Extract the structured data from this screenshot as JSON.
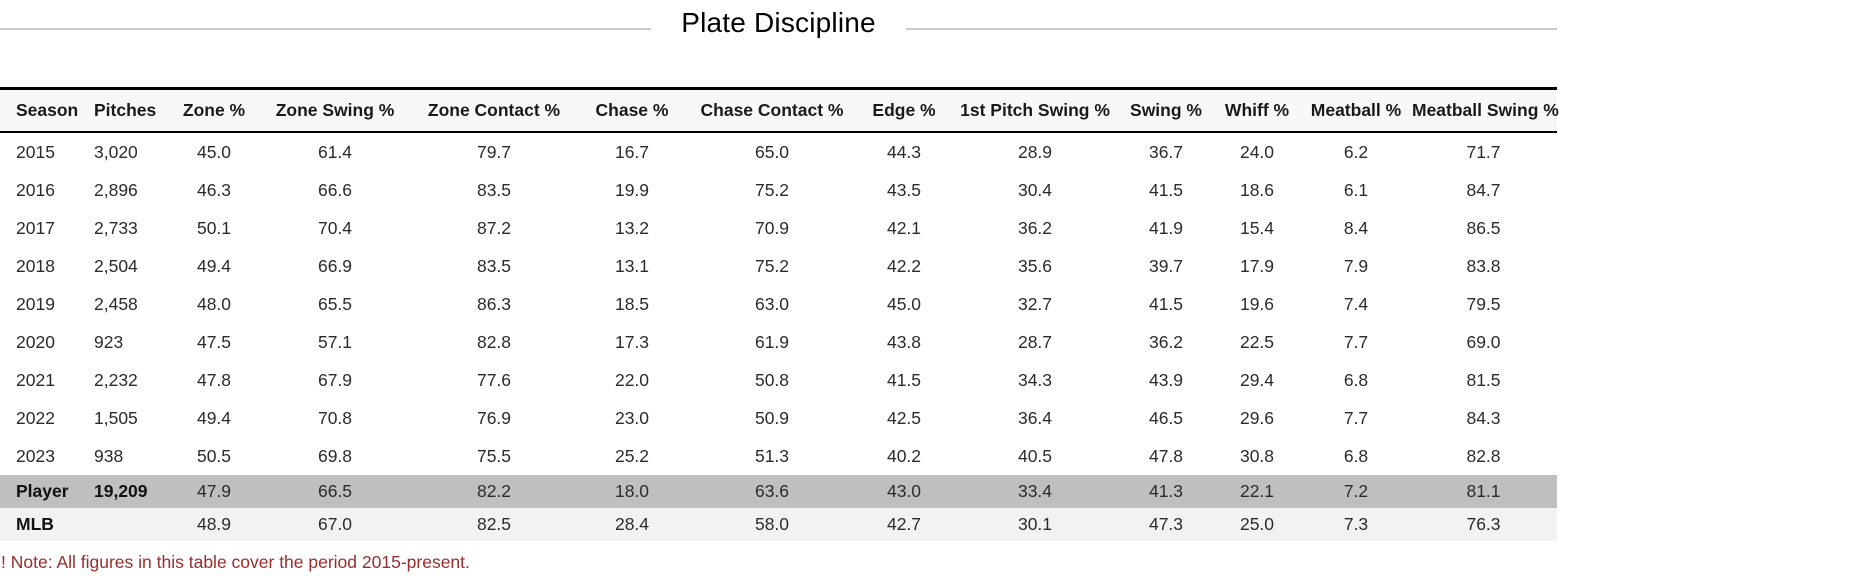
{
  "title": "Plate Discipline",
  "note": "! Note: All figures in this table cover the period 2015-present.",
  "colors": {
    "header_bg": "#f8f8f8",
    "player_row_bg": "#bfbfbf",
    "mlb_row_bg": "#f2f2f2",
    "note_text": "#9b2c2c",
    "title_divider": "#cccccc",
    "table_border": "#000000"
  },
  "chart_data": {
    "type": "table",
    "title": "Plate Discipline",
    "columns": [
      "Season",
      "Pitches",
      "Zone %",
      "Zone Swing %",
      "Zone Contact %",
      "Chase %",
      "Chase Contact %",
      "Edge %",
      "1st Pitch Swing %",
      "Swing %",
      "Whiff %",
      "Meatball %",
      "Meatball Swing %"
    ],
    "rows": [
      {
        "label": "2015",
        "style": "default",
        "cells": [
          "3,020",
          "45.0",
          "61.4",
          "79.7",
          "16.7",
          "65.0",
          "44.3",
          "28.9",
          "36.7",
          "24.0",
          "6.2",
          "71.7"
        ]
      },
      {
        "label": "2016",
        "style": "default",
        "cells": [
          "2,896",
          "46.3",
          "66.6",
          "83.5",
          "19.9",
          "75.2",
          "43.5",
          "30.4",
          "41.5",
          "18.6",
          "6.1",
          "84.7"
        ]
      },
      {
        "label": "2017",
        "style": "default",
        "cells": [
          "2,733",
          "50.1",
          "70.4",
          "87.2",
          "13.2",
          "70.9",
          "42.1",
          "36.2",
          "41.9",
          "15.4",
          "8.4",
          "86.5"
        ]
      },
      {
        "label": "2018",
        "style": "default",
        "cells": [
          "2,504",
          "49.4",
          "66.9",
          "83.5",
          "13.1",
          "75.2",
          "42.2",
          "35.6",
          "39.7",
          "17.9",
          "7.9",
          "83.8"
        ]
      },
      {
        "label": "2019",
        "style": "default",
        "cells": [
          "2,458",
          "48.0",
          "65.5",
          "86.3",
          "18.5",
          "63.0",
          "45.0",
          "32.7",
          "41.5",
          "19.6",
          "7.4",
          "79.5"
        ]
      },
      {
        "label": "2020",
        "style": "default",
        "cells": [
          "923",
          "47.5",
          "57.1",
          "82.8",
          "17.3",
          "61.9",
          "43.8",
          "28.7",
          "36.2",
          "22.5",
          "7.7",
          "69.0"
        ]
      },
      {
        "label": "2021",
        "style": "default",
        "cells": [
          "2,232",
          "47.8",
          "67.9",
          "77.6",
          "22.0",
          "50.8",
          "41.5",
          "34.3",
          "43.9",
          "29.4",
          "6.8",
          "81.5"
        ]
      },
      {
        "label": "2022",
        "style": "default",
        "cells": [
          "1,505",
          "49.4",
          "70.8",
          "76.9",
          "23.0",
          "50.9",
          "42.5",
          "36.4",
          "46.5",
          "29.6",
          "7.7",
          "84.3"
        ]
      },
      {
        "label": "2023",
        "style": "default",
        "cells": [
          "938",
          "50.5",
          "69.8",
          "75.5",
          "25.2",
          "51.3",
          "40.2",
          "40.5",
          "47.8",
          "30.8",
          "6.8",
          "82.8"
        ]
      },
      {
        "label": "Player",
        "style": "player",
        "cells": [
          "19,209",
          "47.9",
          "66.5",
          "82.2",
          "18.0",
          "63.6",
          "43.0",
          "33.4",
          "41.3",
          "22.1",
          "7.2",
          "81.1"
        ]
      },
      {
        "label": "MLB",
        "style": "mlb",
        "cells": [
          "",
          "48.9",
          "67.0",
          "82.5",
          "28.4",
          "58.0",
          "42.7",
          "30.1",
          "47.3",
          "25.0",
          "7.3",
          "76.3"
        ]
      }
    ]
  }
}
